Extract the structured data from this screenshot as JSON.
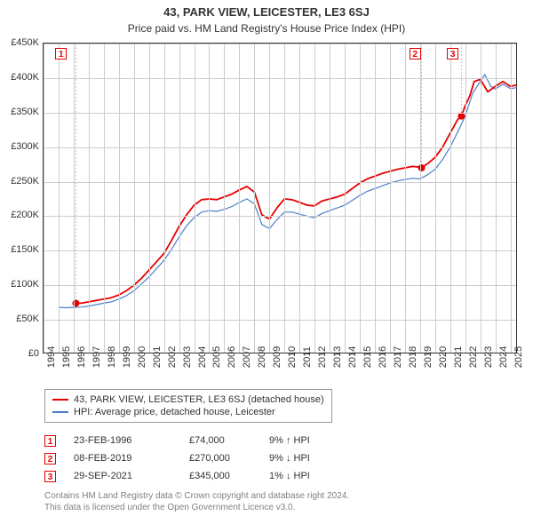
{
  "title": "43, PARK VIEW, LEICESTER, LE3 6SJ",
  "subtitle": "Price paid vs. HM Land Registry's House Price Index (HPI)",
  "chart": {
    "type": "line",
    "background_color": "#ffffff",
    "grid_color": "#cccccc",
    "border_color": "#333333",
    "label_fontsize": 11,
    "x": {
      "min": 1994,
      "max": 2025.5,
      "tick_step": 1,
      "ticks": [
        1994,
        1995,
        1996,
        1997,
        1998,
        1999,
        2000,
        2001,
        2002,
        2003,
        2004,
        2005,
        2006,
        2007,
        2008,
        2009,
        2010,
        2011,
        2012,
        2013,
        2014,
        2015,
        2016,
        2017,
        2018,
        2019,
        2020,
        2021,
        2022,
        2023,
        2024,
        2025
      ]
    },
    "y": {
      "min": 0,
      "max": 450000,
      "tick_step": 50000,
      "prefix": "£",
      "suffix": "K",
      "labels": [
        "£0",
        "£50K",
        "£100K",
        "£150K",
        "£200K",
        "£250K",
        "£300K",
        "£350K",
        "£400K",
        "£450K"
      ]
    },
    "series": [
      {
        "id": "price_paid",
        "label": "43, PARK VIEW, LEICESTER, LE3 6SJ (detached house)",
        "color": "#e60000",
        "line_width": 1.8,
        "points": [
          [
            1996.15,
            74000
          ],
          [
            1996.5,
            74000
          ],
          [
            1997,
            76000
          ],
          [
            1997.5,
            78000
          ],
          [
            1998,
            80000
          ],
          [
            1998.5,
            82000
          ],
          [
            1999,
            86000
          ],
          [
            1999.5,
            92000
          ],
          [
            2000,
            100000
          ],
          [
            2000.5,
            110000
          ],
          [
            2001,
            122000
          ],
          [
            2001.5,
            134000
          ],
          [
            2002,
            146000
          ],
          [
            2002.5,
            165000
          ],
          [
            2003,
            185000
          ],
          [
            2003.5,
            202000
          ],
          [
            2004,
            216000
          ],
          [
            2004.5,
            224000
          ],
          [
            2005,
            225000
          ],
          [
            2005.5,
            224000
          ],
          [
            2006,
            228000
          ],
          [
            2006.5,
            232000
          ],
          [
            2007,
            238000
          ],
          [
            2007.5,
            243000
          ],
          [
            2008,
            235000
          ],
          [
            2008.5,
            202000
          ],
          [
            2009,
            196000
          ],
          [
            2009.5,
            212000
          ],
          [
            2010,
            225000
          ],
          [
            2010.5,
            224000
          ],
          [
            2011,
            220000
          ],
          [
            2011.5,
            216000
          ],
          [
            2012,
            215000
          ],
          [
            2012.5,
            222000
          ],
          [
            2013,
            225000
          ],
          [
            2013.5,
            228000
          ],
          [
            2014,
            232000
          ],
          [
            2014.5,
            240000
          ],
          [
            2015,
            248000
          ],
          [
            2015.5,
            254000
          ],
          [
            2016,
            258000
          ],
          [
            2016.5,
            262000
          ],
          [
            2017,
            265000
          ],
          [
            2017.5,
            268000
          ],
          [
            2018,
            270000
          ],
          [
            2018.5,
            272000
          ],
          [
            2019,
            271000
          ],
          [
            2019.1,
            270000
          ],
          [
            2019.5,
            276000
          ],
          [
            2020,
            285000
          ],
          [
            2020.5,
            300000
          ],
          [
            2021,
            320000
          ],
          [
            2021.5,
            340000
          ],
          [
            2021.75,
            345000
          ],
          [
            2022,
            360000
          ],
          [
            2022.3,
            374000
          ],
          [
            2022.6,
            395000
          ],
          [
            2023,
            398000
          ],
          [
            2023.5,
            380000
          ],
          [
            2024,
            388000
          ],
          [
            2024.5,
            395000
          ],
          [
            2025,
            388000
          ],
          [
            2025.4,
            390000
          ]
        ]
      },
      {
        "id": "hpi",
        "label": "HPI: Average price, detached house, Leicester",
        "color": "#4a7fc9",
        "line_width": 1.2,
        "points": [
          [
            1995,
            68000
          ],
          [
            1995.5,
            67500
          ],
          [
            1996,
            68000
          ],
          [
            1996.5,
            68500
          ],
          [
            1997,
            70000
          ],
          [
            1997.5,
            72000
          ],
          [
            1998,
            74000
          ],
          [
            1998.5,
            76000
          ],
          [
            1999,
            80000
          ],
          [
            1999.5,
            85000
          ],
          [
            2000,
            92000
          ],
          [
            2000.5,
            102000
          ],
          [
            2001,
            112000
          ],
          [
            2001.5,
            124000
          ],
          [
            2002,
            136000
          ],
          [
            2002.5,
            152000
          ],
          [
            2003,
            170000
          ],
          [
            2003.5,
            186000
          ],
          [
            2004,
            198000
          ],
          [
            2004.5,
            206000
          ],
          [
            2005,
            208000
          ],
          [
            2005.5,
            207000
          ],
          [
            2006,
            210000
          ],
          [
            2006.5,
            214000
          ],
          [
            2007,
            220000
          ],
          [
            2007.5,
            225000
          ],
          [
            2008,
            218000
          ],
          [
            2008.5,
            188000
          ],
          [
            2009,
            182000
          ],
          [
            2009.5,
            195000
          ],
          [
            2010,
            206000
          ],
          [
            2010.5,
            206000
          ],
          [
            2011,
            203000
          ],
          [
            2011.5,
            200000
          ],
          [
            2012,
            198000
          ],
          [
            2012.5,
            204000
          ],
          [
            2013,
            208000
          ],
          [
            2013.5,
            212000
          ],
          [
            2014,
            216000
          ],
          [
            2014.5,
            223000
          ],
          [
            2015,
            230000
          ],
          [
            2015.5,
            236000
          ],
          [
            2016,
            240000
          ],
          [
            2016.5,
            244000
          ],
          [
            2017,
            248000
          ],
          [
            2017.5,
            251000
          ],
          [
            2018,
            253000
          ],
          [
            2018.5,
            255000
          ],
          [
            2019,
            254000
          ],
          [
            2019.5,
            260000
          ],
          [
            2020,
            268000
          ],
          [
            2020.5,
            282000
          ],
          [
            2021,
            300000
          ],
          [
            2021.5,
            322000
          ],
          [
            2022,
            345000
          ],
          [
            2022.5,
            378000
          ],
          [
            2023,
            395000
          ],
          [
            2023.3,
            405000
          ],
          [
            2023.7,
            388000
          ],
          [
            2024,
            384000
          ],
          [
            2024.5,
            391000
          ],
          [
            2025,
            385000
          ],
          [
            2025.4,
            386000
          ]
        ]
      }
    ],
    "markers": [
      {
        "n": "1",
        "x": 1996.15,
        "y": 74000,
        "color": "#e60000",
        "top_x": 1995.2
      },
      {
        "n": "2",
        "x": 2019.1,
        "y": 270000,
        "color": "#e60000",
        "top_x": 2018.7
      },
      {
        "n": "3",
        "x": 2021.75,
        "y": 345000,
        "color": "#e60000",
        "top_x": 2021.2
      }
    ],
    "marker_dot_radius": 4
  },
  "legend": {
    "border_color": "#999999",
    "fontsize": 11
  },
  "events": [
    {
      "n": "1",
      "date": "23-FEB-1996",
      "price": "£74,000",
      "delta": "9% ↑ HPI",
      "color": "#e60000"
    },
    {
      "n": "2",
      "date": "08-FEB-2019",
      "price": "£270,000",
      "delta": "9% ↓ HPI",
      "color": "#e60000"
    },
    {
      "n": "3",
      "date": "29-SEP-2021",
      "price": "£345,000",
      "delta": "1% ↓ HPI",
      "color": "#e60000"
    }
  ],
  "attribution": {
    "line1": "Contains HM Land Registry data © Crown copyright and database right 2024.",
    "line2": "This data is licensed under the Open Government Licence v3.0.",
    "color": "#808080"
  }
}
